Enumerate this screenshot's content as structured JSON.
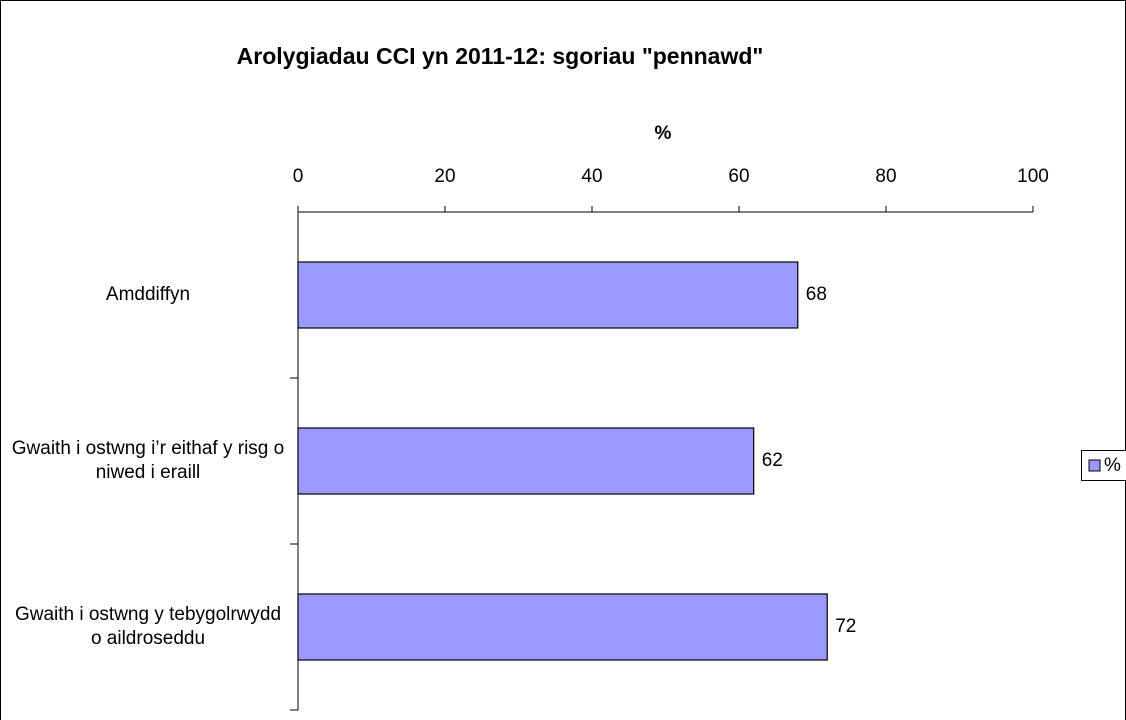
{
  "chart_data": {
    "type": "hbar",
    "title": "Arolygiadau CCI yn 2011-12: sgoriau \"pennawd\"",
    "x_label": "%",
    "categories": [
      "Amddiffyn",
      "Gwaith i ostwng i’r eithaf y risg o niwed i eraill",
      "Gwaith i ostwng y tebygolrwydd o aildroseddu"
    ],
    "series": [
      {
        "name": "%",
        "color": "#9999ff",
        "values": [
          68,
          62,
          72
        ]
      }
    ],
    "xlim": [
      0,
      100
    ],
    "xticks": [
      0,
      20,
      40,
      60,
      80,
      100
    ],
    "legend": "right",
    "grid": false
  }
}
